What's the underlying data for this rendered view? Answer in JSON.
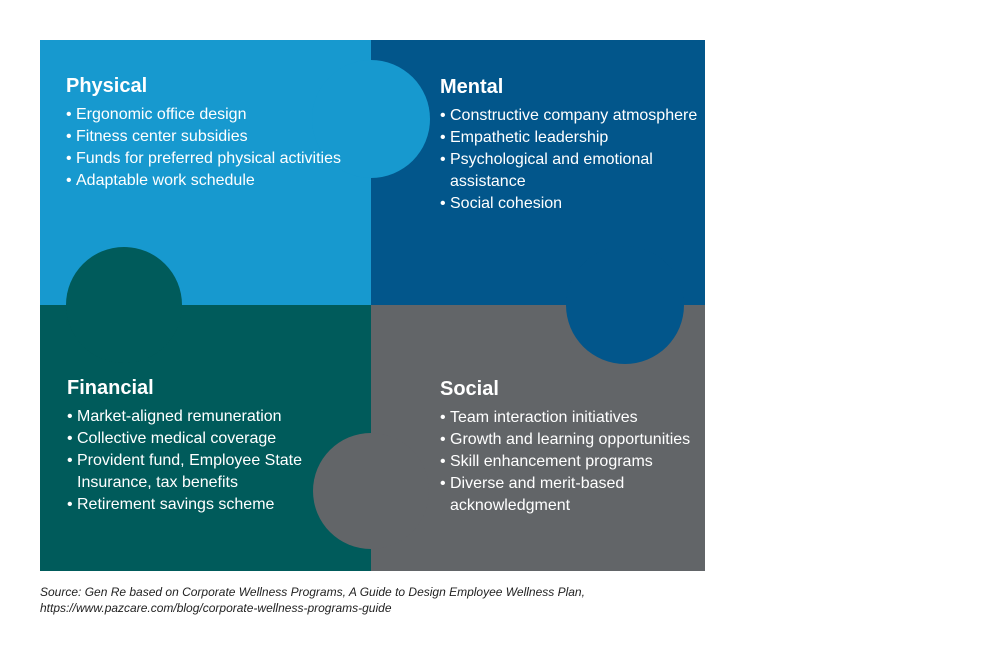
{
  "colors": {
    "physical": "#1799cf",
    "mental": "#02568b",
    "financial": "#005b5b",
    "social": "#626568"
  },
  "quadrants": {
    "physical": {
      "title": "Physical",
      "items": [
        "Ergonomic office design",
        "Fitness center subsidies",
        "Funds for preferred physical activities",
        "Adaptable work schedule"
      ]
    },
    "mental": {
      "title": "Mental",
      "items": [
        "Constructive company atmosphere",
        "Empathetic leadership",
        "Psychological and emotional assistance",
        "Social cohesion"
      ]
    },
    "financial": {
      "title": "Financial",
      "items": [
        "Market-aligned remuneration",
        "Collective medical coverage",
        "Provident fund, Employee State Insurance, tax benefits",
        "Retirement savings scheme"
      ]
    },
    "social": {
      "title": "Social",
      "items": [
        "Team interaction initiatives",
        "Growth and learning opportunities",
        "Skill enhancement programs",
        "Diverse and merit-based acknowledgment"
      ]
    }
  },
  "source": {
    "line1": "Source: Gen Re based on Corporate Wellness Programs, A Guide to Design Employee Wellness Plan,",
    "line2": "https://www.pazcare.com/blog/corporate-wellness-programs-guide"
  }
}
